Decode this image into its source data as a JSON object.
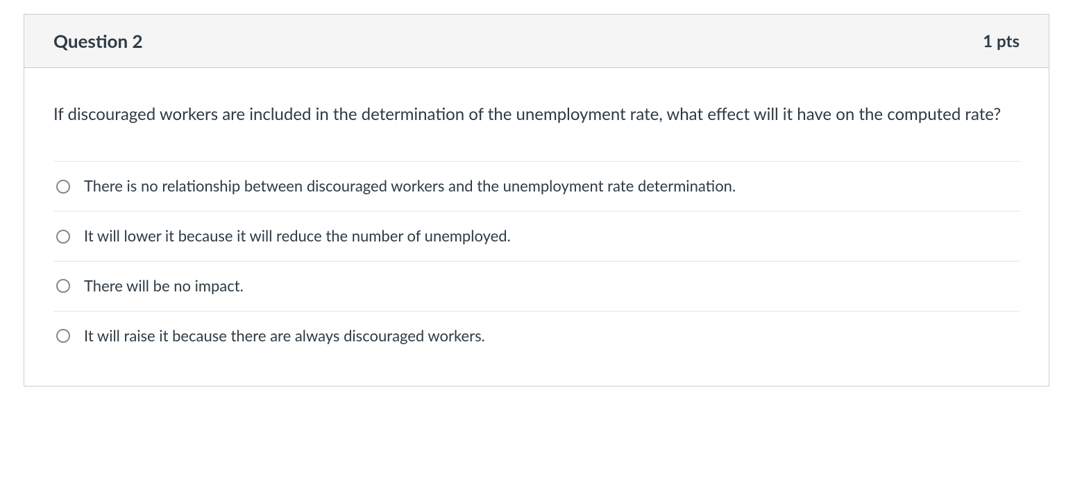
{
  "colors": {
    "border": "#c7cdd1",
    "header_bg": "#f5f5f5",
    "text": "#2d3b45",
    "divider": "#e5e5e5",
    "radio_border": "#888888",
    "background": "#ffffff"
  },
  "question": {
    "title": "Question 2",
    "points": "1 pts",
    "prompt": "If discouraged workers are included in the determination of the unemployment rate, what effect will it have on the computed rate?",
    "options": [
      {
        "label": "There is no relationship between discouraged workers and the unemployment rate determination.",
        "selected": false
      },
      {
        "label": "It will lower it because it will reduce the number of unemployed.",
        "selected": false
      },
      {
        "label": "There will be no impact.",
        "selected": false
      },
      {
        "label": "It will raise it because there are always discouraged workers.",
        "selected": false
      }
    ]
  }
}
